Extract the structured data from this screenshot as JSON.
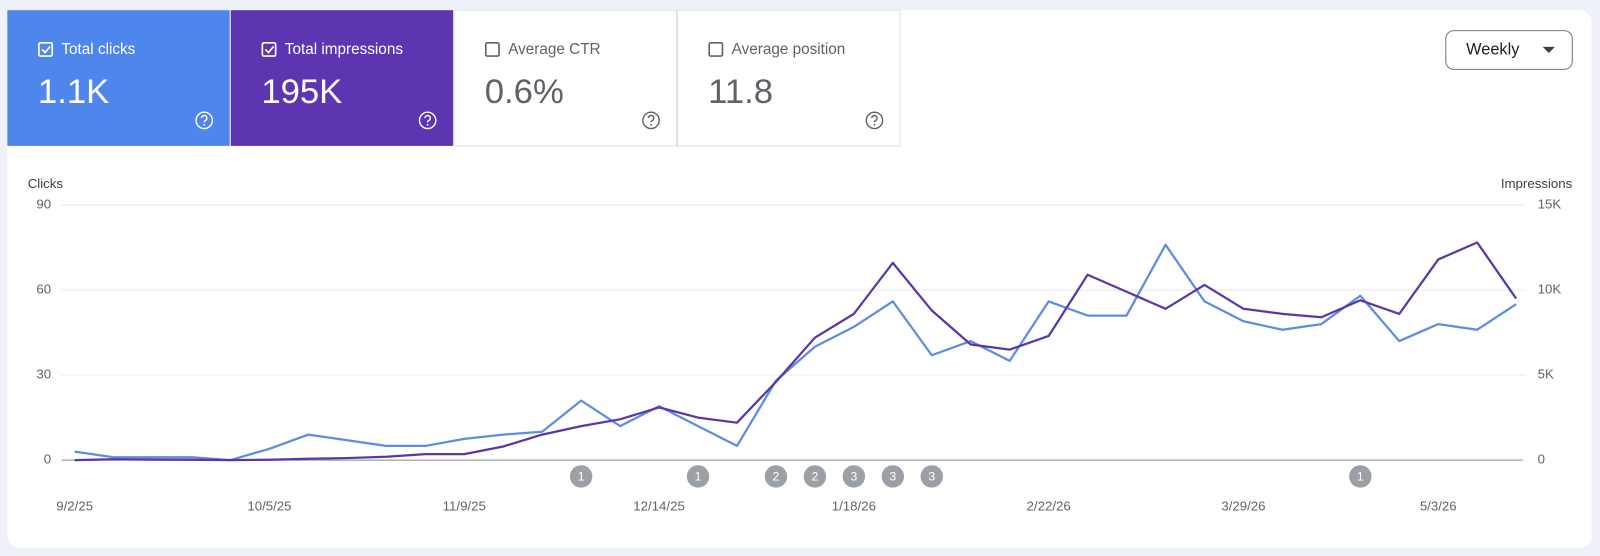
{
  "metrics": [
    {
      "label": "Total clicks",
      "value": "1.1K",
      "checked": true,
      "color": "#4f86ec"
    },
    {
      "label": "Total impressions",
      "value": "195K",
      "checked": true,
      "color": "#5e35b1"
    },
    {
      "label": "Average CTR",
      "value": "0.6%",
      "checked": false,
      "color": "#ffffff"
    },
    {
      "label": "Average position",
      "value": "11.8",
      "checked": false,
      "color": "#ffffff"
    }
  ],
  "interval": "Weekly",
  "chart_data": {
    "type": "line",
    "ylabel": "Clicks",
    "y2label": "Impressions",
    "categories": [
      "9/2/25",
      null,
      null,
      null,
      null,
      "10/5/25",
      null,
      null,
      null,
      null,
      "11/9/25",
      null,
      null,
      null,
      null,
      "12/14/25",
      null,
      null,
      null,
      null,
      "1/18/26",
      null,
      null,
      null,
      null,
      "2/22/26",
      null,
      null,
      null,
      null,
      "3/29/26",
      null,
      null,
      null,
      null,
      "5/3/26",
      null,
      null
    ],
    "ylim": [
      0,
      90
    ],
    "yticks": [
      0,
      30,
      60,
      90
    ],
    "y2lim": [
      0,
      15000
    ],
    "y2ticks": [
      0,
      {
        "value": 5000,
        "label": "5K"
      },
      {
        "value": 10000,
        "label": "10K"
      },
      {
        "value": 15000,
        "label": "15K"
      }
    ],
    "grid": true,
    "series": [
      {
        "name": "Clicks",
        "color": "#5b8ee0",
        "values": [
          3,
          1,
          1,
          1,
          0,
          4,
          9,
          7,
          5,
          5,
          7.5,
          9,
          10,
          21,
          12,
          19,
          12,
          5,
          28,
          40,
          47,
          56,
          37,
          42,
          35,
          56,
          51,
          51,
          76,
          56,
          49,
          46,
          48,
          58,
          42,
          48,
          46,
          55
        ]
      },
      {
        "name": "Impressions",
        "color": "#5b36a8",
        "axis": "y2",
        "values": [
          0,
          50,
          30,
          20,
          0,
          20,
          80,
          120,
          200,
          350,
          350,
          800,
          1500,
          2000,
          2400,
          3100,
          2500,
          2200,
          4600,
          7200,
          8600,
          11600,
          8800,
          6800,
          6500,
          7300,
          10900,
          9900,
          8900,
          10300,
          8900,
          8600,
          8400,
          9400,
          8600,
          11800,
          12800,
          9500
        ]
      }
    ],
    "annotations": [
      {
        "at": 13,
        "text": "1"
      },
      {
        "at": 16,
        "text": "1"
      },
      {
        "at": 18,
        "text": "2"
      },
      {
        "at": 19,
        "text": "2"
      },
      {
        "at": 20,
        "text": "3"
      },
      {
        "at": 21,
        "text": "3"
      },
      {
        "at": 22,
        "text": "3"
      },
      {
        "at": 33,
        "text": "1"
      }
    ]
  }
}
